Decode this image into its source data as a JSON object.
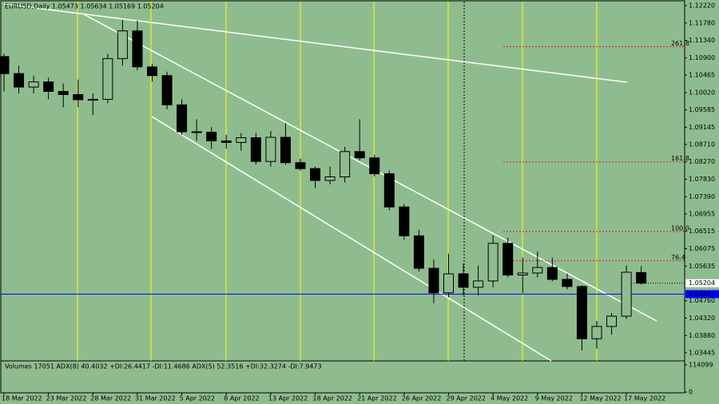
{
  "chart_data": [
    {
      "type": "candlestick",
      "title": "EURUSD,Daily  1.05473 1.05634 1.05169 1.05204",
      "categories": [
        "18 Mar 2022",
        null,
        null,
        "23 Mar 2022",
        null,
        null,
        "28 Mar 2022",
        null,
        null,
        "31 Mar 2022",
        null,
        null,
        "5 Apr 2022",
        null,
        null,
        "8 Apr 2022",
        null,
        null,
        "13 Apr 2022",
        null,
        null,
        "18 Apr 2022",
        null,
        null,
        "21 Apr 2022",
        null,
        null,
        "26 Apr 2022",
        null,
        null,
        "29 Apr 2022",
        null,
        null,
        "4 May 2022",
        null,
        null,
        "9 May 2022",
        null,
        null,
        "12 May 2022",
        null,
        null,
        "17 May 2022",
        null
      ],
      "open": [
        1.1093,
        1.105,
        1.1016,
        1.1029,
        1.1005,
        1.0997,
        1.0984,
        1.0985,
        1.1088,
        1.1158,
        1.1067,
        1.1045,
        1.0971,
        1.0903,
        1.0902,
        1.088,
        1.0876,
        1.0888,
        1.0828,
        1.0889,
        1.0825,
        1.081,
        1.078,
        1.0789,
        1.0853,
        1.0837,
        1.0797,
        1.0713,
        1.064,
        1.0558,
        1.0496,
        1.0544,
        1.051,
        1.0526,
        1.0621,
        1.0541,
        1.0546,
        1.056,
        1.053,
        1.0512,
        1.038,
        1.0411,
        1.0437,
        1.05473
      ],
      "high": [
        1.11,
        1.107,
        1.1045,
        1.104,
        1.1025,
        1.1035,
        1.1,
        1.11,
        1.1185,
        1.1184,
        1.1075,
        1.1055,
        1.0985,
        1.0935,
        1.0915,
        1.0895,
        1.09,
        1.09,
        1.0905,
        1.0925,
        1.0835,
        1.0815,
        1.0815,
        1.0865,
        1.0935,
        1.0845,
        1.0805,
        1.072,
        1.0655,
        1.058,
        1.0595,
        1.057,
        1.0565,
        1.0641,
        1.0635,
        1.0585,
        1.06,
        1.0585,
        1.0545,
        1.0515,
        1.0425,
        1.0445,
        1.0565,
        1.05634
      ],
      "low": [
        1.1005,
        1.1,
        1.1,
        1.0985,
        1.0965,
        1.0965,
        1.0945,
        1.0975,
        1.107,
        1.1058,
        1.103,
        1.096,
        1.0895,
        1.088,
        1.086,
        1.086,
        1.0855,
        1.082,
        1.0815,
        1.082,
        1.0805,
        1.076,
        1.077,
        1.0775,
        1.083,
        1.079,
        1.0705,
        1.063,
        1.055,
        1.047,
        1.0485,
        1.049,
        1.049,
        1.051,
        1.0535,
        1.0495,
        1.0535,
        1.0525,
        1.0505,
        1.035,
        1.0355,
        1.039,
        1.043,
        1.05169
      ],
      "close": [
        1.105,
        1.1016,
        1.1029,
        1.1005,
        1.0997,
        1.0984,
        1.0985,
        1.1088,
        1.1158,
        1.1067,
        1.1045,
        1.0971,
        1.0903,
        1.0902,
        1.088,
        1.0876,
        1.0888,
        1.0828,
        1.0889,
        1.0825,
        1.081,
        1.078,
        1.0789,
        1.0853,
        1.0837,
        1.0797,
        1.0713,
        1.064,
        1.0558,
        1.0496,
        1.0544,
        1.051,
        1.0526,
        1.0621,
        1.0541,
        1.0546,
        1.056,
        1.053,
        1.0512,
        1.038,
        1.0411,
        1.0437,
        1.0548,
        1.05204
      ],
      "up_color": "#8fbc8f",
      "down_color": "#000000",
      "ylim": [
        1.0324,
        1.1232
      ],
      "yticks": [
        {
          "value": 1.1222,
          "label": "1.12220"
        },
        {
          "value": 1.1178,
          "label": "1.11780"
        },
        {
          "value": 1.1134,
          "label": "1.11340"
        },
        {
          "value": 1.109,
          "label": "1.10900"
        },
        {
          "value": 1.10465,
          "label": "1.10465"
        },
        {
          "value": 1.1002,
          "label": "1.10020"
        },
        {
          "value": 1.09585,
          "label": "1.09585"
        },
        {
          "value": 1.09145,
          "label": "1.09145"
        },
        {
          "value": 1.0871,
          "label": "1.08710"
        },
        {
          "value": 1.0827,
          "label": "1.08270"
        },
        {
          "value": 1.0783,
          "label": "1.07830"
        },
        {
          "value": 1.0739,
          "label": "1.07390"
        },
        {
          "value": 1.06955,
          "label": "1.06955"
        },
        {
          "value": 1.06515,
          "label": "1.06515"
        },
        {
          "value": 1.06075,
          "label": "1.06075"
        },
        {
          "value": 1.05635,
          "label": "1.05635"
        },
        {
          "value": 1.0476,
          "label": "1.04760"
        },
        {
          "value": 1.0432,
          "label": "1.04320"
        },
        {
          "value": 1.0388,
          "label": "1.03880"
        },
        {
          "value": 1.03445,
          "label": "1.03445"
        }
      ],
      "price_line": {
        "value": 1.04927,
        "label": "1.04927",
        "color": "#0000ff"
      },
      "current_price": {
        "value": 1.05204,
        "label": "1.05204"
      },
      "fib_levels": [
        {
          "value": 1.1118,
          "label": "261.8"
        },
        {
          "value": 1.0827,
          "label": "161.8"
        },
        {
          "value": 1.0651,
          "label": "100.0"
        },
        {
          "value": 1.0577,
          "label": "76.4"
        }
      ],
      "fib_color": "#d21e1e"
    },
    {
      "type": "indicator",
      "title": "Volumes 17051  ADX(8) 40.4032 +DI:26.4417 -DI:11.4686  ADX(5) 52.3516 +DI:32.3274 -DI:7.9473",
      "ylim": [
        0,
        114099
      ],
      "yticks": [
        0,
        114099
      ]
    }
  ]
}
